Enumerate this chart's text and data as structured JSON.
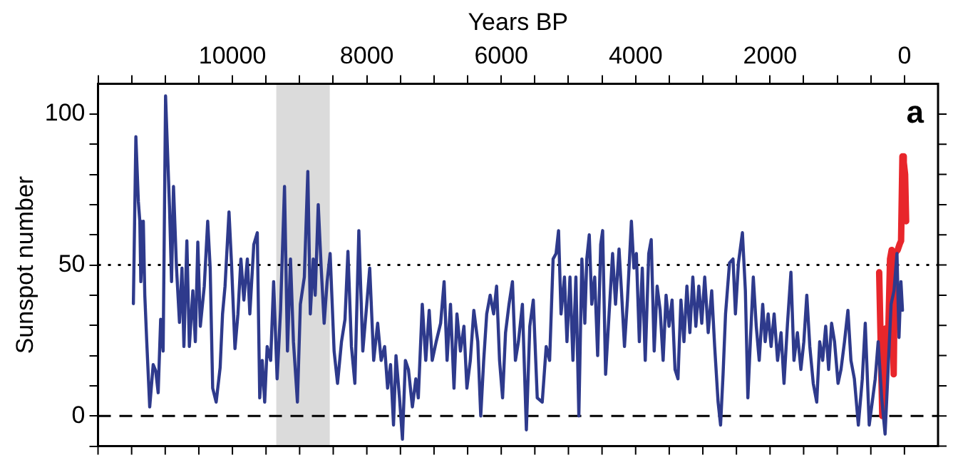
{
  "chart_data": {
    "type": "line",
    "xlabel": "Years BP",
    "ylabel": "Sunspot number",
    "annotations": [
      "a"
    ],
    "xlim": [
      12000,
      -500
    ],
    "xticks": [
      {
        "value": 12000,
        "label": null
      },
      {
        "value": 11500,
        "label": null
      },
      {
        "value": 11000,
        "label": null
      },
      {
        "value": 10500,
        "label": null
      },
      10000,
      {
        "value": 9500,
        "label": null
      },
      {
        "value": 9000,
        "label": null
      },
      {
        "value": 8500,
        "label": null
      },
      8000,
      {
        "value": 7500,
        "label": null
      },
      {
        "value": 7000,
        "label": null
      },
      {
        "value": 6500,
        "label": null
      },
      6000,
      {
        "value": 5500,
        "label": null
      },
      {
        "value": 5000,
        "label": null
      },
      {
        "value": 4500,
        "label": null
      },
      4000,
      {
        "value": 3500,
        "label": null
      },
      {
        "value": 3000,
        "label": null
      },
      {
        "value": 2500,
        "label": null
      },
      2000,
      {
        "value": 1500,
        "label": null
      },
      {
        "value": 1000,
        "label": null
      },
      {
        "value": 500,
        "label": null
      },
      0
    ],
    "ylim": [
      -10,
      110
    ],
    "yticks": [
      {
        "value": -10,
        "label": null
      },
      0,
      {
        "value": 10,
        "label": null
      },
      {
        "value": 20,
        "label": null
      },
      {
        "value": 30,
        "label": null
      },
      {
        "value": 40,
        "label": null
      },
      50,
      {
        "value": 60,
        "label": null
      },
      {
        "value": 70,
        "label": null
      },
      {
        "value": 80,
        "label": null
      },
      {
        "value": 90,
        "label": null
      },
      100
    ],
    "grid": false,
    "legend": false,
    "ref_lines": [
      {
        "axis": "y",
        "value": 50,
        "line_style": "dotted",
        "color": "#000000"
      },
      {
        "axis": "y",
        "value": 0,
        "line_style": "dashed",
        "color": "#000000"
      }
    ],
    "bands": [
      {
        "axis": "x",
        "from": 9350,
        "to": 8550,
        "color": "#888888"
      }
    ],
    "series": [
      {
        "color": "#2e3a8c",
        "x": [
          11474,
          11437,
          11400,
          11378,
          11363,
          11326,
          11304,
          11275,
          11231,
          11179,
          11142,
          11105,
          11068,
          11031,
          10995,
          10936,
          10906,
          10877,
          10832,
          10788,
          10751,
          10722,
          10678,
          10641,
          10589,
          10552,
          10515,
          10478,
          10419,
          10368,
          10331,
          10294,
          10242,
          10183,
          10147,
          10110,
          10051,
          10014,
          9962,
          9918,
          9874,
          9830,
          9778,
          9741,
          9682,
          9630,
          9594,
          9557,
          9520,
          9483,
          9431,
          9387,
          9335,
          9284,
          9225,
          9181,
          9136,
          9092,
          9033,
          8989,
          8930,
          8878,
          8841,
          8797,
          8768,
          8723,
          8679,
          8635,
          8591,
          8546,
          8487,
          8436,
          8377,
          8325,
          8281,
          8229,
          8178,
          8119,
          8060,
          8001,
          7957,
          7898,
          7839,
          7787,
          7735,
          7691,
          7647,
          7603,
          7566,
          7514,
          7470,
          7426,
          7381,
          7322,
          7271,
          7234,
          7175,
          7123,
          7072,
          7027,
          6968,
          6902,
          6850,
          6806,
          6755,
          6703,
          6659,
          6607,
          6555,
          6511,
          6460,
          6408,
          6349,
          6305,
          6261,
          6216,
          6165,
          6113,
          6069,
          6025,
          5980,
          5936,
          5884,
          5833,
          5789,
          5744,
          5685,
          5626,
          5575,
          5523,
          5464,
          5390,
          5331,
          5280,
          5228,
          5184,
          5147,
          5110,
          5059,
          5022,
          4977,
          4933,
          4889,
          4845,
          4800,
          4756,
          4727,
          4690,
          4653,
          4609,
          4565,
          4520,
          4491,
          4447,
          4395,
          4343,
          4299,
          4247,
          4211,
          4166,
          4122,
          4063,
          4026,
          3989,
          3945,
          3901,
          3857,
          3805,
          3768,
          3724,
          3680,
          3635,
          3591,
          3547,
          3503,
          3458,
          3414,
          3370,
          3326,
          3281,
          3237,
          3193,
          3149,
          3104,
          3060,
          3016,
          2972,
          2920,
          2868,
          2824,
          2773,
          2736,
          2699,
          2662,
          2603,
          2551,
          2515,
          2470,
          2411,
          2367,
          2330,
          2293,
          2249,
          2205,
          2161,
          2109,
          2072,
          2028,
          1984,
          1939,
          1888,
          1836,
          1792,
          1740,
          1689,
          1644,
          1593,
          1541,
          1497,
          1453,
          1408,
          1357,
          1305,
          1261,
          1217,
          1172,
          1128,
          1084,
          1040,
          988,
          944,
          892,
          841,
          796,
          745,
          686,
          627,
          583,
          524,
          479,
          435,
          391,
          339,
          288,
          243,
          199,
          155,
          111,
          81,
          52,
          29
        ],
        "values": [
          37.2,
          92.5,
          71,
          64.5,
          44.5,
          64.5,
          40,
          24.6,
          3,
          17,
          15,
          7.7,
          32,
          21.5,
          106,
          69,
          44.5,
          76,
          49,
          31,
          49,
          23,
          58,
          23,
          41.5,
          24.6,
          57.6,
          29.7,
          43,
          64.5,
          49,
          9.2,
          4.6,
          16,
          33.8,
          43,
          67.6,
          50.7,
          22.3,
          33.8,
          52,
          38.4,
          52,
          33.8,
          56.8,
          60.7,
          6,
          18.4,
          4.6,
          23,
          18.4,
          44.5,
          12.3,
          35,
          76,
          21.5,
          52,
          24.6,
          4.6,
          37,
          46,
          81,
          33.8,
          52,
          40,
          70,
          49,
          30.7,
          44.5,
          53.8,
          21.5,
          10.8,
          24.6,
          32,
          54.5,
          23,
          10.8,
          61.4,
          21.5,
          37,
          49,
          18.4,
          30.7,
          18.4,
          23,
          9.2,
          17,
          -3,
          20,
          6,
          -7.7,
          18.4,
          15.4,
          3,
          12.3,
          6,
          37,
          18.4,
          35,
          18.4,
          24.6,
          30.7,
          44.5,
          18.4,
          37,
          9.2,
          33.8,
          21.5,
          29.7,
          9.2,
          18.4,
          35,
          24.6,
          0,
          18.4,
          33.8,
          40,
          33.8,
          43,
          18.4,
          6,
          27.6,
          37,
          44.5,
          18.4,
          24.6,
          37,
          -4.6,
          29.7,
          38.4,
          6,
          4.6,
          23,
          18.4,
          52,
          53.8,
          61.4,
          33.8,
          46,
          24.6,
          46,
          18.4,
          46,
          0,
          52,
          30.7,
          52,
          60,
          37,
          46,
          20,
          56.8,
          61.4,
          13.8,
          33.8,
          53.8,
          37,
          55.3,
          41.5,
          23,
          38.4,
          64.5,
          49,
          53.8,
          24.6,
          49,
          18.4,
          53.8,
          58.4,
          21.5,
          43,
          35,
          18.4,
          40,
          29.7,
          38.4,
          15.4,
          12.3,
          38.4,
          24.6,
          43,
          27.6,
          46,
          29.7,
          43,
          30.7,
          46,
          27.6,
          41.5,
          23,
          4.6,
          -3,
          13.8,
          33.8,
          50.7,
          52,
          33.8,
          50.7,
          60.7,
          41.5,
          6,
          24.6,
          46,
          29.7,
          18.4,
          37,
          24.6,
          33.8,
          23,
          33.8,
          18.4,
          27.6,
          10.8,
          30.7,
          47.6,
          18.4,
          27.6,
          15.4,
          24.6,
          40,
          23,
          10.8,
          4.6,
          24.6,
          18.4,
          29.7,
          15.4,
          30.7,
          24.6,
          10.8,
          15.4,
          24.6,
          35,
          18.4,
          12.3,
          -3,
          12.3,
          30.7,
          -3,
          4.6,
          12.3,
          24.6,
          6,
          -6,
          15.4,
          37,
          41.5,
          53.8,
          26,
          44.5,
          35
        ]
      },
      {
        "color": "#e8262b",
        "x": [
          376,
          330,
          280,
          240,
          214,
          190,
          160,
          140,
          100,
          70,
          50,
          30,
          10,
          -10,
          -25
        ],
        "values": [
          47.6,
          0,
          29,
          28,
          52,
          55,
          13.8,
          54,
          55,
          57,
          58,
          86,
          84,
          80,
          64.5
        ]
      }
    ]
  }
}
